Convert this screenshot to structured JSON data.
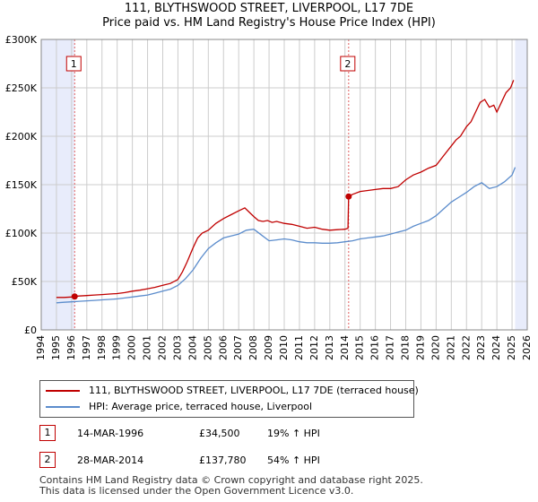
{
  "title_line1": "111, BLYTHSWOOD STREET, LIVERPOOL, L17 7DE",
  "title_line2": "Price paid vs. HM Land Registry's House Price Index (HPI)",
  "colors": {
    "price": "#c00000",
    "hpi": "#5b8ccc",
    "shade": "#e8ecfb",
    "grid": "#cccccc",
    "marker_line": "#e06060"
  },
  "legend": {
    "price_label": "111, BLYTHSWOOD STREET, LIVERPOOL, L17 7DE (terraced house)",
    "hpi_label": "HPI: Average price, terraced house, Liverpool"
  },
  "transactions": [
    {
      "num": "1",
      "date": "14-MAR-1996",
      "price": "£34,500",
      "hpi_change": "19% ↑ HPI"
    },
    {
      "num": "2",
      "date": "28-MAR-2014",
      "price": "£137,780",
      "hpi_change": "54% ↑ HPI"
    }
  ],
  "footer": {
    "line1": "Contains HM Land Registry data © Crown copyright and database right 2025.",
    "line2": "This data is licensed under the Open Government Licence v3.0."
  },
  "chart_data": {
    "type": "line",
    "title": "111, BLYTHSWOOD STREET, LIVERPOOL, L17 7DE — Price paid vs. HM Land Registry's House Price Index (HPI)",
    "xlabel": "",
    "ylabel": "",
    "xlim": [
      1994,
      2026
    ],
    "ylim": [
      0,
      300000
    ],
    "x_ticks": [
      1994,
      1995,
      1996,
      1997,
      1998,
      1999,
      2000,
      2001,
      2002,
      2003,
      2004,
      2005,
      2006,
      2007,
      2008,
      2009,
      2010,
      2011,
      2012,
      2013,
      2014,
      2015,
      2016,
      2017,
      2018,
      2019,
      2020,
      2021,
      2022,
      2023,
      2024,
      2025,
      2026
    ],
    "y_ticks": [
      0,
      50000,
      100000,
      150000,
      200000,
      250000,
      300000
    ],
    "y_tick_labels": [
      "£0",
      "£50K",
      "£100K",
      "£150K",
      "£200K",
      "£250K",
      "£300K"
    ],
    "grid": true,
    "shaded_ranges": [
      [
        1994,
        1996.2
      ],
      [
        2025.2,
        2026
      ]
    ],
    "markers": [
      {
        "label": "1",
        "x": 1996.2,
        "y": 34500
      },
      {
        "label": "2",
        "x": 2014.24,
        "y": 137780
      }
    ],
    "series": [
      {
        "name": "111, BLYTHSWOOD STREET, LIVERPOOL, L17 7DE (terraced house)",
        "x": [
          1995.0,
          1995.5,
          1996.0,
          1996.2,
          1996.5,
          1997.0,
          1997.5,
          1998.0,
          1998.5,
          1999.0,
          1999.5,
          2000.0,
          2000.5,
          2001.0,
          2001.5,
          2002.0,
          2002.5,
          2003.0,
          2003.3,
          2003.6,
          2004.0,
          2004.3,
          2004.6,
          2005.0,
          2005.5,
          2006.0,
          2006.5,
          2007.0,
          2007.4,
          2007.8,
          2008.0,
          2008.3,
          2008.6,
          2008.9,
          2009.2,
          2009.5,
          2010.0,
          2010.5,
          2011.0,
          2011.5,
          2012.0,
          2012.5,
          2013.0,
          2013.5,
          2014.0,
          2014.2,
          2014.24,
          2014.5,
          2015.0,
          2015.5,
          2016.0,
          2016.5,
          2017.0,
          2017.5,
          2018.0,
          2018.5,
          2019.0,
          2019.5,
          2020.0,
          2020.5,
          2021.0,
          2021.3,
          2021.6,
          2022.0,
          2022.3,
          2022.6,
          2022.9,
          2023.2,
          2023.5,
          2023.8,
          2024.0,
          2024.3,
          2024.6,
          2024.9,
          2025.1
        ],
        "values": [
          33500,
          33500,
          34000,
          34500,
          35000,
          35500,
          36000,
          36500,
          37000,
          37500,
          38500,
          40000,
          41000,
          42500,
          44000,
          46000,
          48000,
          52000,
          60000,
          70000,
          85000,
          95000,
          100000,
          103000,
          110000,
          115000,
          119000,
          123000,
          126000,
          120000,
          117000,
          113000,
          112000,
          113000,
          111000,
          112000,
          110000,
          109000,
          107000,
          105000,
          106000,
          104000,
          103000,
          103500,
          104000,
          105000,
          137780,
          140000,
          143000,
          144000,
          145000,
          146000,
          146000,
          148000,
          155000,
          160000,
          163000,
          167000,
          170000,
          180000,
          190000,
          196000,
          200000,
          210000,
          215000,
          225000,
          235000,
          238000,
          230000,
          232000,
          225000,
          235000,
          245000,
          250000,
          258000
        ]
      },
      {
        "name": "HPI: Average price, terraced house, Liverpool",
        "x": [
          1995.0,
          1995.5,
          1996.0,
          1996.5,
          1997.0,
          1997.5,
          1998.0,
          1998.5,
          1999.0,
          1999.5,
          2000.0,
          2000.5,
          2001.0,
          2001.5,
          2002.0,
          2002.5,
          2003.0,
          2003.5,
          2004.0,
          2004.5,
          2005.0,
          2005.5,
          2006.0,
          2006.5,
          2007.0,
          2007.5,
          2008.0,
          2008.5,
          2009.0,
          2009.5,
          2010.0,
          2010.5,
          2011.0,
          2011.5,
          2012.0,
          2012.5,
          2013.0,
          2013.5,
          2014.0,
          2014.5,
          2015.0,
          2015.5,
          2016.0,
          2016.5,
          2017.0,
          2017.5,
          2018.0,
          2018.5,
          2019.0,
          2019.5,
          2020.0,
          2020.5,
          2021.0,
          2021.5,
          2022.0,
          2022.5,
          2023.0,
          2023.5,
          2024.0,
          2024.5,
          2025.0,
          2025.2
        ],
        "values": [
          28000,
          28500,
          29000,
          29500,
          30000,
          30500,
          31000,
          31500,
          32000,
          33000,
          34000,
          35000,
          36000,
          38000,
          40000,
          42000,
          46000,
          53000,
          62000,
          74000,
          84000,
          90000,
          95000,
          97000,
          99000,
          103000,
          104000,
          98000,
          92000,
          93000,
          94000,
          93000,
          91000,
          90000,
          90000,
          89500,
          89500,
          90000,
          91000,
          92000,
          94000,
          95000,
          96000,
          97000,
          99000,
          101000,
          103000,
          107000,
          110000,
          113000,
          118000,
          125000,
          132000,
          137000,
          142000,
          148000,
          152000,
          146000,
          148000,
          153000,
          160000,
          168000
        ]
      }
    ]
  }
}
